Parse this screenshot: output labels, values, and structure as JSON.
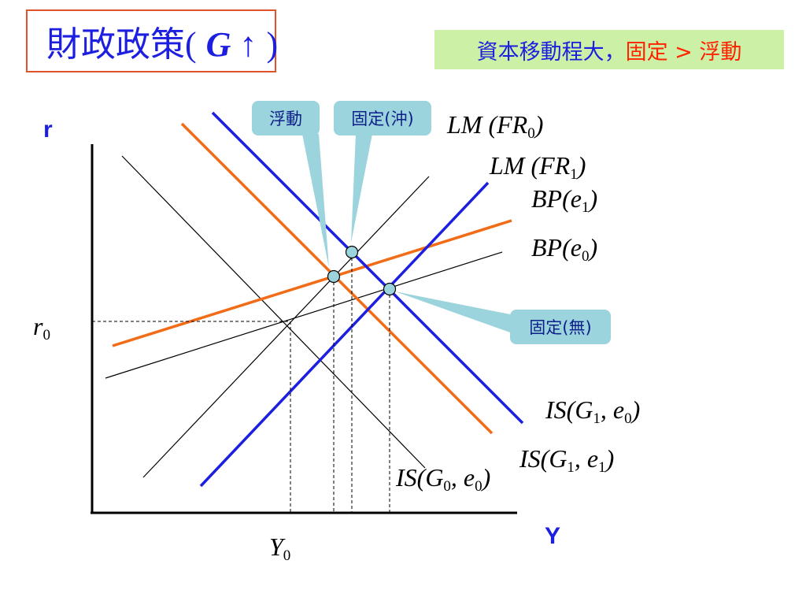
{
  "title": {
    "prefix": "財政政策(",
    "symbol": "G ↑",
    "suffix": ")"
  },
  "note": {
    "part1": "資本移動程大，",
    "part2": "固定 > 浮動"
  },
  "axes": {
    "y_label": "r",
    "x_label": "Y"
  },
  "markers": {
    "r0": {
      "main": "r",
      "sub": "0"
    },
    "y0": {
      "main": "Y",
      "sub": "0"
    }
  },
  "curve_labels": {
    "lm0": {
      "a": "LM (FR",
      "sub": "0",
      "b": ")"
    },
    "lm1": {
      "a": "LM (FR",
      "sub": "1",
      "b": ")"
    },
    "bp1": {
      "a": "BP(e",
      "sub": "1",
      "b": ")"
    },
    "bp0": {
      "a": "BP(e",
      "sub": "0",
      "b": ")"
    },
    "is_g1e0": {
      "a": "IS(G",
      "sub1": "1",
      "mid": ", e",
      "sub2": "0",
      "b": ")"
    },
    "is_g1e1": {
      "a": "IS(G",
      "sub1": "1",
      "mid": ", e",
      "sub2": "1",
      "b": ")"
    },
    "is_g0e0": {
      "a": "IS(G",
      "sub1": "0",
      "mid": ", e",
      "sub2": "0",
      "b": ")"
    }
  },
  "callouts": {
    "floating": "浮動",
    "fixed_sterilized": "固定(沖)",
    "fixed_unsterilized": "固定(無)"
  },
  "colors": {
    "blue": "#1c1ee0",
    "orange": "#f26b16",
    "callout": "#9bd4dc",
    "note_bg": "#ccf0a6",
    "title_border": "#e0532a"
  }
}
